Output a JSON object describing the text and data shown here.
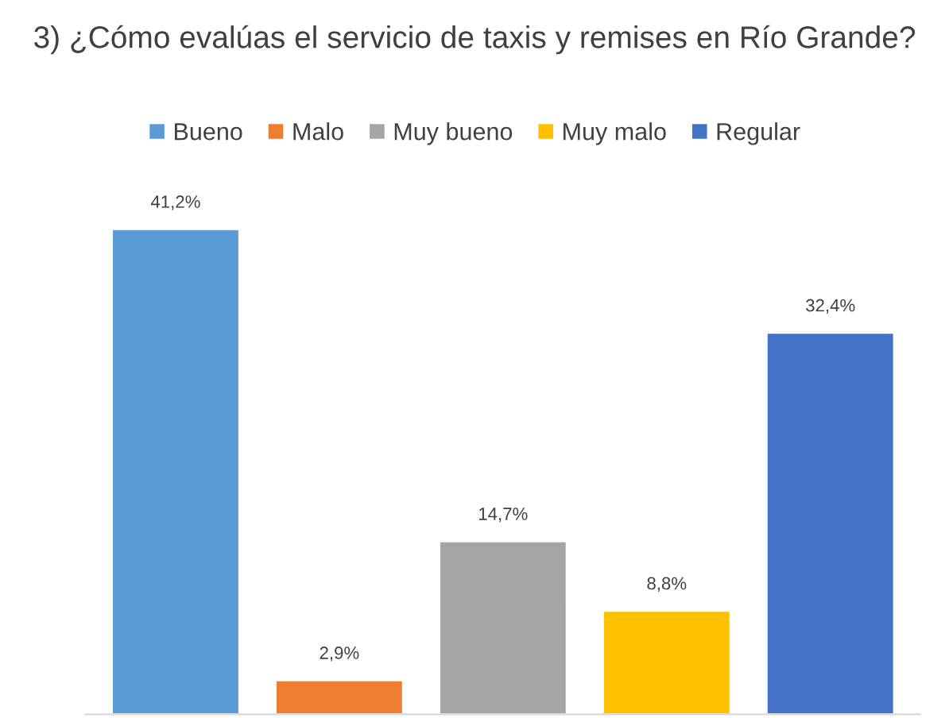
{
  "chart_data": {
    "type": "bar",
    "title": "3) ¿Cómo evalúas el servicio de taxis y remises en Río Grande?",
    "categories": [
      null
    ],
    "series": [
      {
        "name": "Bueno",
        "color": "#5b9bd5",
        "values": [
          41.2
        ],
        "value_labels": [
          "41,2%"
        ]
      },
      {
        "name": "Malo",
        "color": "#ed7d31",
        "values": [
          2.9
        ],
        "value_labels": [
          "2,9%"
        ]
      },
      {
        "name": "Muy bueno",
        "color": "#a5a5a5",
        "values": [
          14.7
        ],
        "value_labels": [
          "14,7%"
        ]
      },
      {
        "name": "Muy malo",
        "color": "#ffc000",
        "values": [
          8.8
        ],
        "value_labels": [
          "8,8%"
        ]
      },
      {
        "name": "Regular",
        "color": "#4472c4",
        "values": [
          32.4
        ],
        "value_labels": [
          "32,4%"
        ]
      }
    ],
    "legend": "top",
    "grid": false
  }
}
